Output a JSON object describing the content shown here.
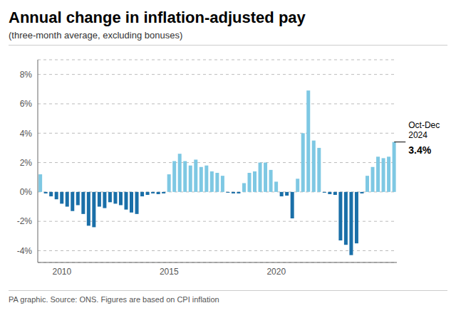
{
  "chart_data": {
    "type": "bar",
    "title": "Annual change in inflation-adjusted pay",
    "subtitle": "(three-month average, excluding bonuses)",
    "footer": "PA graphic. Source: ONS. Figures are based on CPI inflation",
    "categories": [
      null,
      null,
      null,
      null,
      "2010",
      null,
      null,
      null,
      null,
      null,
      null,
      null,
      null,
      null,
      null,
      null,
      null,
      null,
      null,
      null,
      null,
      null,
      null,
      null,
      "2015",
      null,
      null,
      null,
      null,
      null,
      null,
      null,
      null,
      null,
      null,
      null,
      null,
      null,
      null,
      null,
      null,
      null,
      null,
      null,
      "2020",
      null,
      null,
      null,
      null,
      null,
      null,
      null,
      null,
      null,
      null,
      null,
      null,
      null,
      null,
      null,
      null,
      null,
      null,
      null,
      null,
      null,
      null
    ],
    "values": [
      1.2,
      -0.1,
      -0.3,
      -0.5,
      -0.8,
      -1.0,
      -1.3,
      -0.9,
      -1.5,
      -2.3,
      -2.4,
      -1.0,
      -1.1,
      -0.7,
      -0.8,
      -0.9,
      -1.2,
      -1.4,
      -1.5,
      -0.3,
      -0.2,
      -0.1,
      -0.15,
      -0.1,
      1.2,
      2.1,
      2.6,
      2.1,
      1.8,
      2.2,
      1.7,
      1.8,
      1.4,
      1.3,
      1.1,
      -0.05,
      -0.1,
      -0.1,
      0.6,
      1.3,
      1.4,
      2.0,
      2.0,
      1.5,
      0.7,
      -0.3,
      -0.25,
      -1.8,
      0.9,
      4.0,
      6.9,
      3.5,
      3.0,
      -0.05,
      -0.15,
      -0.2,
      -3.3,
      -3.6,
      -4.3,
      -3.5,
      -0.1,
      1.1,
      1.7,
      2.4,
      2.3,
      2.4,
      3.4
    ],
    "colors": [
      "#7ec8e3",
      "#1a6fa8",
      "#1a6fa8",
      "#1a6fa8",
      "#1a6fa8",
      "#1a6fa8",
      "#1a6fa8",
      "#1a6fa8",
      "#1a6fa8",
      "#1a6fa8",
      "#1a6fa8",
      "#1a6fa8",
      "#1a6fa8",
      "#1a6fa8",
      "#1a6fa8",
      "#1a6fa8",
      "#1a6fa8",
      "#1a6fa8",
      "#1a6fa8",
      "#1a6fa8",
      "#1a6fa8",
      "#1a6fa8",
      "#1a6fa8",
      "#1a6fa8",
      "#7ec8e3",
      "#7ec8e3",
      "#7ec8e3",
      "#7ec8e3",
      "#7ec8e3",
      "#7ec8e3",
      "#7ec8e3",
      "#7ec8e3",
      "#7ec8e3",
      "#7ec8e3",
      "#7ec8e3",
      "#1a6fa8",
      "#1a6fa8",
      "#1a6fa8",
      "#7ec8e3",
      "#7ec8e3",
      "#7ec8e3",
      "#7ec8e3",
      "#7ec8e3",
      "#7ec8e3",
      "#7ec8e3",
      "#1a6fa8",
      "#1a6fa8",
      "#1a6fa8",
      "#7ec8e3",
      "#7ec8e3",
      "#7ec8e3",
      "#7ec8e3",
      "#7ec8e3",
      "#1a6fa8",
      "#1a6fa8",
      "#1a6fa8",
      "#1a6fa8",
      "#1a6fa8",
      "#1a6fa8",
      "#1a6fa8",
      "#1a6fa8",
      "#7ec8e3",
      "#7ec8e3",
      "#7ec8e3",
      "#7ec8e3",
      "#7ec8e3",
      "#7ec8e3"
    ],
    "ylim": [
      -4.8,
      9.0
    ],
    "yticks": [
      {
        "value": -4,
        "label": "-4%"
      },
      {
        "value": -2,
        "label": "-2%"
      },
      {
        "value": 0,
        "label": "0%"
      },
      {
        "value": 2,
        "label": "2%"
      },
      {
        "value": 4,
        "label": "4%"
      },
      {
        "value": 6,
        "label": "6%"
      },
      {
        "value": 8,
        "label": "8%"
      }
    ],
    "grid": true,
    "annotations": [
      "Oct-Dec\n2024",
      "3.4%"
    ]
  }
}
